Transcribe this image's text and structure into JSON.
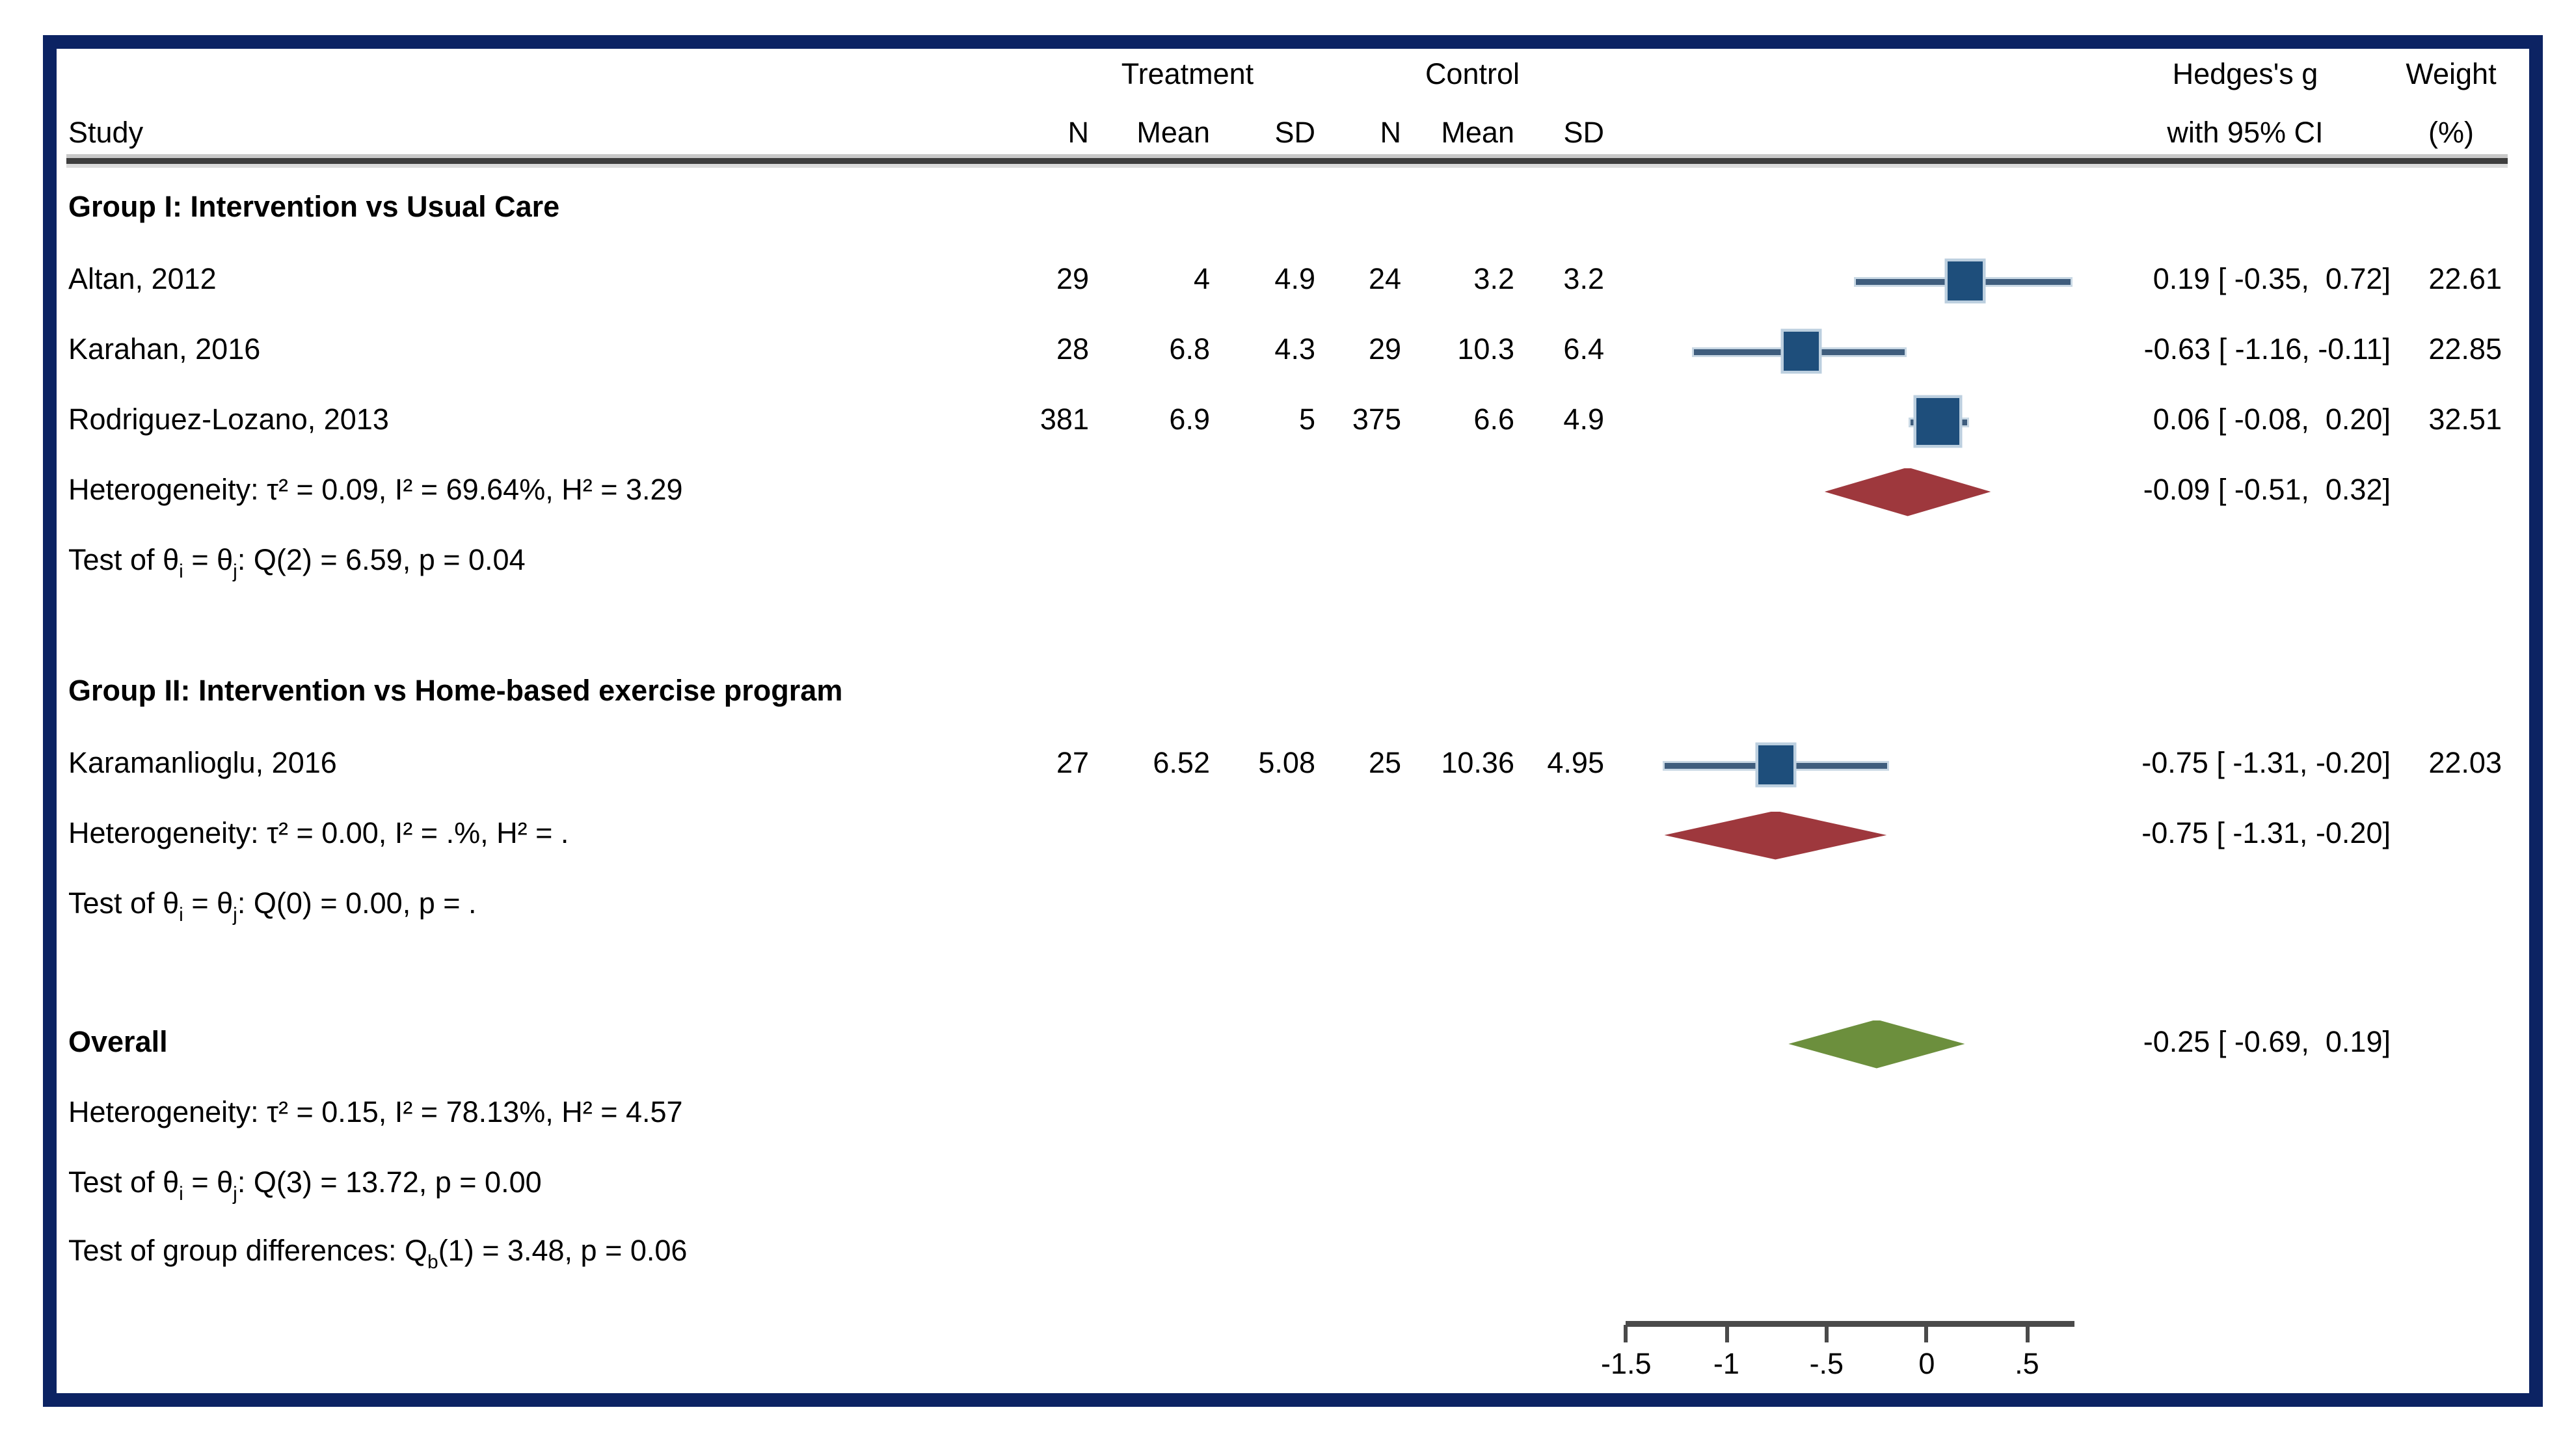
{
  "page": {
    "header": {
      "study": "Study",
      "treatment": "Treatment",
      "control": "Control",
      "n": "N",
      "mean": "Mean",
      "sd": "SD",
      "effect_line1": "Hedges's g",
      "effect_line2": "with 95% CI",
      "weight_line1": "Weight",
      "weight_line2": "(%)"
    }
  },
  "colors": {
    "frame_border": "#0C2363",
    "square_fill": "#1E4E7B",
    "square_halo": "#BCCFDF",
    "ci_line": "#3F5D7D",
    "group_diamond": "#9E383D",
    "overall_diamond": "#6C8F3D",
    "rule_gray": "#3E3E3E"
  },
  "chart_data": {
    "type": "forest",
    "effect_measure": "Hedges's g",
    "xlim": [
      -1.5,
      0.5
    ],
    "axis": {
      "values": [
        -1.5,
        -1,
        -0.5,
        0,
        0.5
      ],
      "labels": [
        "-1.5",
        "-1",
        "-.5",
        "0",
        ".5"
      ]
    },
    "groups": [
      {
        "title": "Group I: Intervention vs Usual Care",
        "studies": [
          {
            "label": "Altan, 2012",
            "n_t": "29",
            "mean_t": "4",
            "sd_t": "4.9",
            "n_c": "24",
            "mean_c": "3.2",
            "sd_c": "3.2",
            "es": 0.19,
            "ci_lo": -0.35,
            "ci_hi": 0.72,
            "es_ci_text": "0.19 [ -0.35,  0.72]",
            "weight_pct": 22.61,
            "weight_text": "22.61"
          },
          {
            "label": "Karahan, 2016",
            "n_t": "28",
            "mean_t": "6.8",
            "sd_t": "4.3",
            "n_c": "29",
            "mean_c": "10.3",
            "sd_c": "6.4",
            "es": -0.63,
            "ci_lo": -1.16,
            "ci_hi": -0.11,
            "es_ci_text": "-0.63 [ -1.16, -0.11]",
            "weight_pct": 22.85,
            "weight_text": "22.85"
          },
          {
            "label": "Rodriguez-Lozano, 2013",
            "n_t": "381",
            "mean_t": "6.9",
            "sd_t": "5",
            "n_c": "375",
            "mean_c": "6.6",
            "sd_c": "4.9",
            "es": 0.06,
            "ci_lo": -0.08,
            "ci_hi": 0.2,
            "es_ci_text": "0.06 [ -0.08,  0.20]",
            "weight_pct": 32.51,
            "weight_text": "32.51"
          }
        ],
        "pooled": {
          "es": -0.09,
          "ci_lo": -0.51,
          "ci_hi": 0.32,
          "es_ci_text": "-0.09 [ -0.51,  0.32]",
          "color": "#9E383D"
        },
        "heterogeneity": "Heterogeneity: τ² = 0.09, I² = 69.64%, H² = 3.29",
        "test_parts": [
          {
            "t": "Test of θ"
          },
          {
            "t": "i",
            "sub": true
          },
          {
            "t": " = θ"
          },
          {
            "t": "j",
            "sub": true
          },
          {
            "t": ": Q(2) = 6.59, p = 0.04"
          }
        ]
      },
      {
        "title": "Group II: Intervention vs Home-based exercise program",
        "studies": [
          {
            "label": "Karamanlioglu, 2016",
            "n_t": "27",
            "mean_t": "6.52",
            "sd_t": "5.08",
            "n_c": "25",
            "mean_c": "10.36",
            "sd_c": "4.95",
            "es": -0.75,
            "ci_lo": -1.31,
            "ci_hi": -0.2,
            "es_ci_text": "-0.75 [ -1.31, -0.20]",
            "weight_pct": 22.03,
            "weight_text": "22.03"
          }
        ],
        "pooled": {
          "es": -0.75,
          "ci_lo": -1.31,
          "ci_hi": -0.2,
          "es_ci_text": "-0.75 [ -1.31, -0.20]",
          "color": "#9E383D"
        },
        "heterogeneity": "Heterogeneity: τ² = 0.00, I² = .%, H² = .",
        "test_parts": [
          {
            "t": "Test of θ"
          },
          {
            "t": "i",
            "sub": true
          },
          {
            "t": " = θ"
          },
          {
            "t": "j",
            "sub": true
          },
          {
            "t": ": Q(0) = 0.00, p = ."
          }
        ]
      }
    ],
    "overall": {
      "label": "Overall",
      "pooled": {
        "es": -0.25,
        "ci_lo": -0.69,
        "ci_hi": 0.19,
        "es_ci_text": "-0.25 [ -0.69,  0.19]",
        "color": "#6C8F3D"
      },
      "heterogeneity": "Heterogeneity: τ² = 0.15, I² = 78.13%, H² = 4.57",
      "test_parts": [
        {
          "t": "Test of θ"
        },
        {
          "t": "i",
          "sub": true
        },
        {
          "t": " = θ"
        },
        {
          "t": "j",
          "sub": true
        },
        {
          "t": ": Q(3) = 13.72, p = 0.00"
        }
      ]
    },
    "group_difference_parts": [
      {
        "t": "Test of group differences: Q"
      },
      {
        "t": "b",
        "sub": true
      },
      {
        "t": "(1) = 3.48, p = 0.06"
      }
    ]
  }
}
